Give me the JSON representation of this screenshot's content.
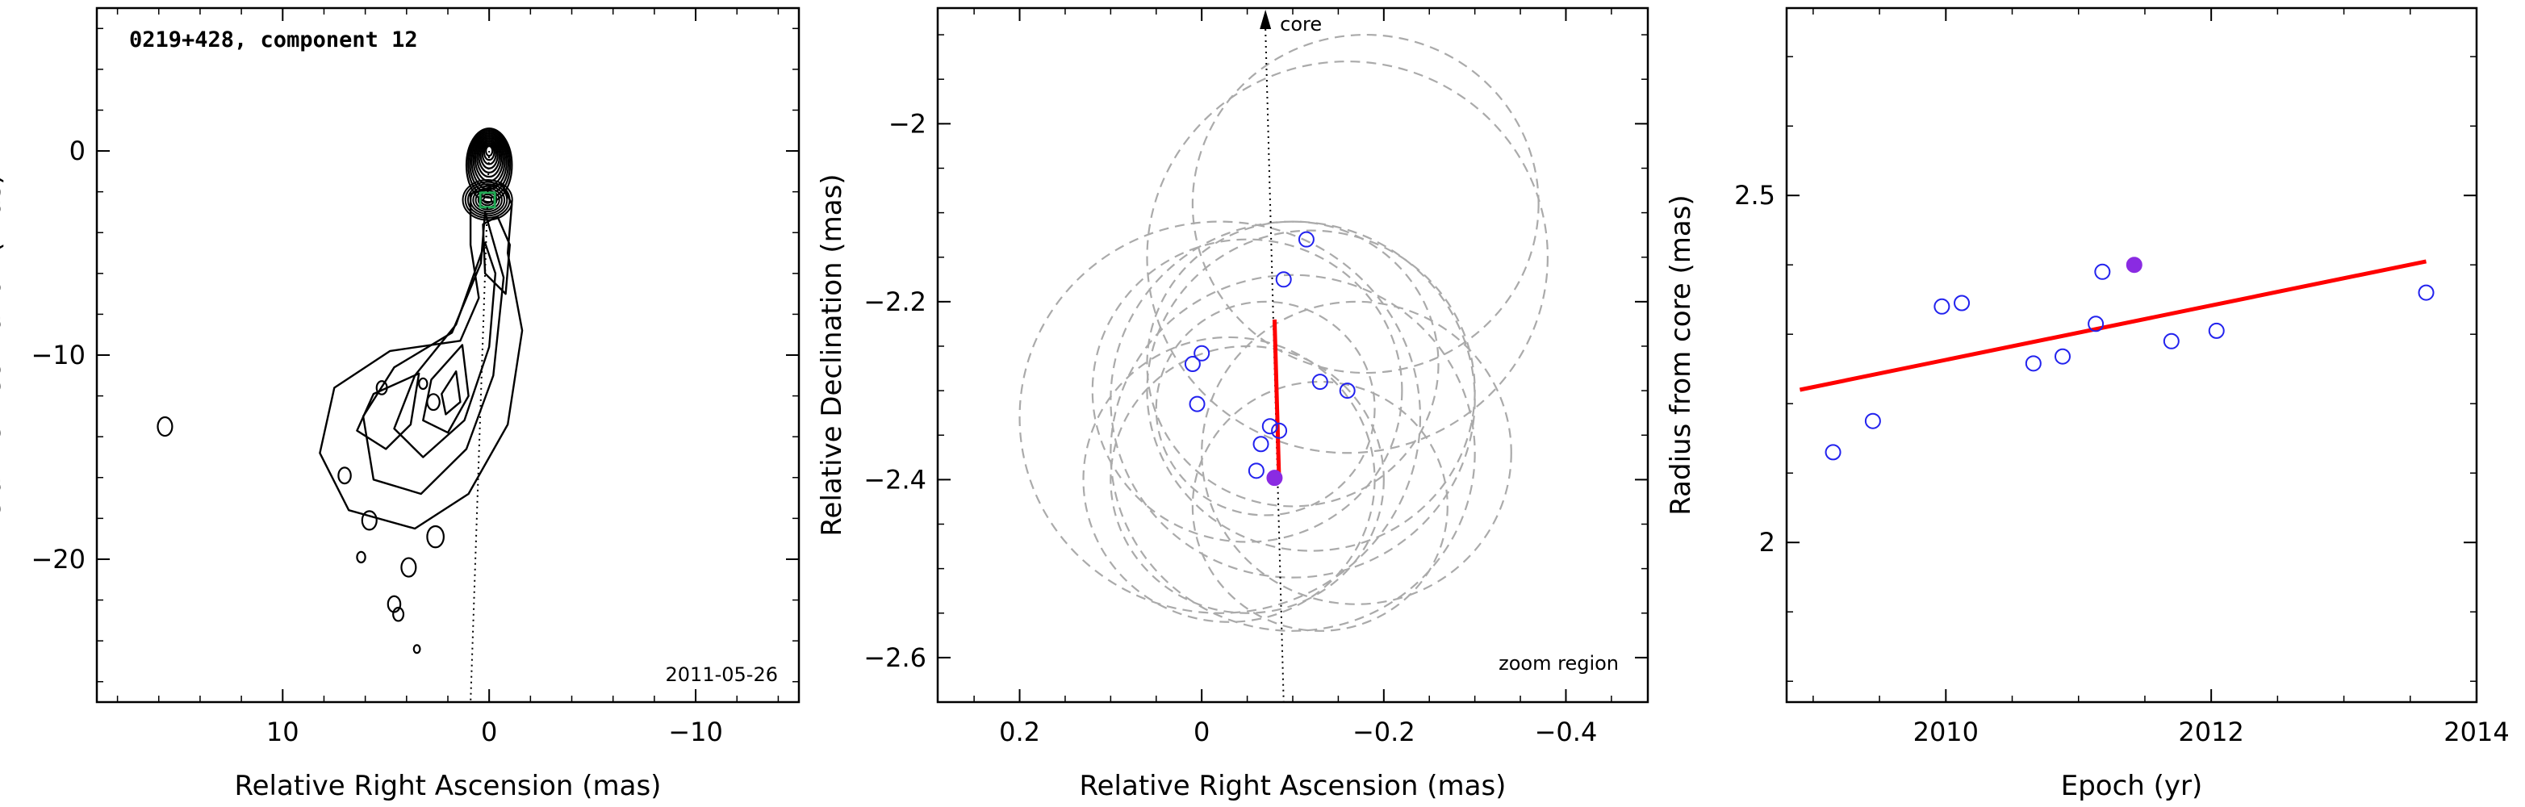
{
  "chart_data": [
    {
      "type": "contour",
      "title": "0219+428, component 12",
      "date": "2011-05-26",
      "xlabel": "Relative Right Ascension (mas)",
      "ylabel": "Relative Declination (mas)",
      "xlim": [
        19,
        -15
      ],
      "ylim": [
        -27,
        7
      ],
      "xticks": [
        10,
        0,
        -10
      ],
      "xtick_labels": [
        "10",
        "0",
        "−10"
      ],
      "yticks": [
        0,
        -10,
        -20
      ],
      "ytick_labels": [
        "0",
        "−10",
        "−20"
      ],
      "core": {
        "x": 0,
        "y": 0
      },
      "component_marker": {
        "x": 0.08,
        "y": -2.4,
        "color": "#22aa55"
      },
      "trajectory_line": {
        "x": [
          0,
          0.9
        ],
        "y": [
          0,
          -27
        ]
      }
    },
    {
      "type": "scatter",
      "xlabel": "Relative Right Ascension (mas)",
      "ylabel": "Relative Declination (mas)",
      "xlim": [
        0.29,
        -0.49
      ],
      "ylim": [
        -2.65,
        -1.87
      ],
      "xticks": [
        0.2,
        0,
        -0.2,
        -0.4
      ],
      "xtick_labels": [
        "0.2",
        "0",
        "−0.2",
        "−0.4"
      ],
      "yticks": [
        -2,
        -2.2,
        -2.4,
        -2.6
      ],
      "ytick_labels": [
        "−2",
        "−2.2",
        "−2.4",
        "−2.6"
      ],
      "annotations": [
        "core",
        "zoom region"
      ],
      "points": [
        {
          "x": -0.115,
          "y": -2.13
        },
        {
          "x": -0.09,
          "y": -2.175
        },
        {
          "x": 0.0,
          "y": -2.258
        },
        {
          "x": 0.01,
          "y": -2.27
        },
        {
          "x": 0.005,
          "y": -2.315
        },
        {
          "x": -0.13,
          "y": -2.29
        },
        {
          "x": -0.16,
          "y": -2.3
        },
        {
          "x": -0.075,
          "y": -2.34
        },
        {
          "x": -0.085,
          "y": -2.345
        },
        {
          "x": -0.065,
          "y": -2.36
        },
        {
          "x": -0.06,
          "y": -2.39
        }
      ],
      "highlight_point": {
        "x": -0.08,
        "y": -2.398,
        "color": "#8a2be2"
      },
      "fit_segment": {
        "x": [
          -0.08,
          -0.085
        ],
        "y": [
          -2.22,
          -2.4
        ],
        "color": "#ff0000"
      },
      "uncertainty_circles": [
        {
          "x": -0.18,
          "y": -2.09,
          "r": 0.19
        },
        {
          "x": -0.16,
          "y": -2.15,
          "r": 0.22
        },
        {
          "x": -0.1,
          "y": -2.27,
          "r": 0.16
        },
        {
          "x": -0.12,
          "y": -2.3,
          "r": 0.18
        },
        {
          "x": -0.1,
          "y": -2.31,
          "r": 0.2
        },
        {
          "x": -0.05,
          "y": -2.3,
          "r": 0.17
        },
        {
          "x": -0.05,
          "y": -2.4,
          "r": 0.15
        },
        {
          "x": -0.13,
          "y": -2.43,
          "r": 0.14
        },
        {
          "x": -0.1,
          "y": -2.37,
          "r": 0.2
        },
        {
          "x": -0.02,
          "y": -2.33,
          "r": 0.22
        },
        {
          "x": -0.17,
          "y": -2.37,
          "r": 0.17
        },
        {
          "x": -0.07,
          "y": -2.32,
          "r": 0.12
        },
        {
          "x": -0.03,
          "y": -2.4,
          "r": 0.16
        }
      ],
      "core_line": {
        "x": [
          -0.07,
          -0.09
        ],
        "y": [
          -1.87,
          -2.65
        ]
      }
    },
    {
      "type": "scatter",
      "xlabel": "Epoch (yr)",
      "ylabel": "Radius from core (mas)",
      "xlim": [
        2008.8,
        2014
      ],
      "ylim": [
        1.77,
        2.77
      ],
      "xticks": [
        2010,
        2012,
        2014
      ],
      "xtick_labels": [
        "2010",
        "2012",
        "2014"
      ],
      "yticks": [
        2,
        2.5
      ],
      "ytick_labels": [
        "2",
        "2.5"
      ],
      "x": [
        2009.15,
        2009.45,
        2009.97,
        2010.12,
        2010.66,
        2010.88,
        2011.13,
        2011.18,
        2011.7,
        2012.04,
        2013.62
      ],
      "y": [
        2.13,
        2.175,
        2.34,
        2.345,
        2.258,
        2.268,
        2.315,
        2.39,
        2.29,
        2.305,
        2.36
      ],
      "highlight_point": {
        "x": 2011.42,
        "y": 2.4,
        "color": "#8a2be2"
      },
      "fit_line": {
        "x": [
          2008.9,
          2013.62
        ],
        "y": [
          2.22,
          2.405
        ],
        "color": "#ff0000"
      }
    }
  ]
}
